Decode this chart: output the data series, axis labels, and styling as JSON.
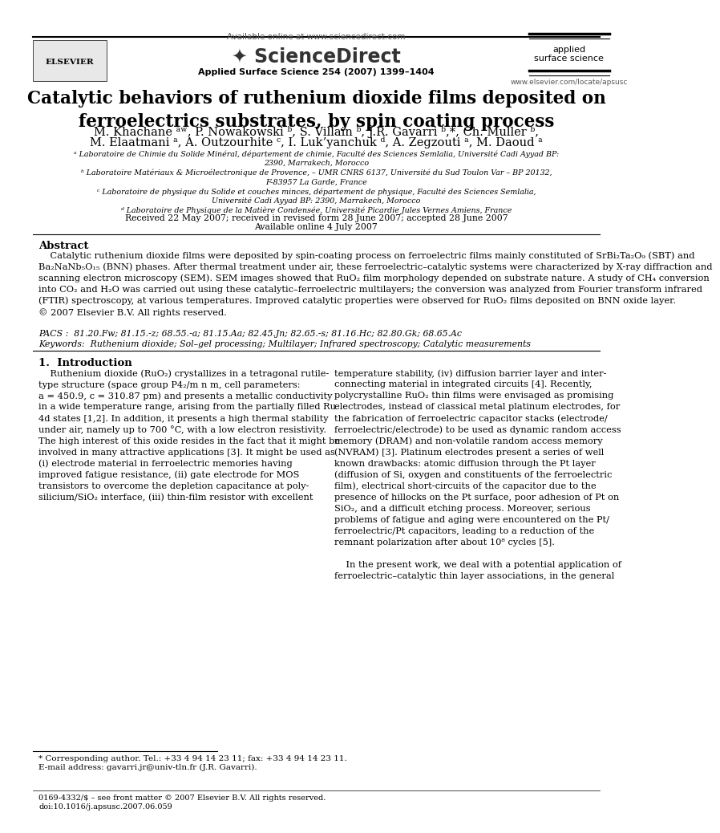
{
  "page_width": 9.92,
  "page_height": 13.23,
  "bg_color": "#ffffff",
  "header_available_online": "Available online at www.sciencedirect.com",
  "header_journal_ref": "Applied Surface Science 254 (2007) 1399–1404",
  "header_elsevier_label": "ELSEVIER",
  "header_journal_name_line1": "applied",
  "header_journal_name_line2": "surface science",
  "header_website": "www.elsevier.com/locate/apsusc",
  "title": "Catalytic behaviors of ruthenium dioxide films deposited on\nferroelectrics substrates, by spin coating process",
  "authors_line1": "M. Khachane ᵃʷ, P. Nowakowski ᵇ, S. Villain ᵇ, J.R. Gavarri ᵇ,*, Ch. Muller ᵇ,",
  "authors_line2": "M. Elaatmani ᵃ, A. Outzourhite ᶜ, I. Luk’yanchuk ᵈ, A. Zegzouti ᵃ, M. Daoud ᵃ",
  "affiliations": [
    "ᵃ Laboratoire de Chimie du Solide Minéral, département de chimie, Faculté des Sciences Semlalia, Université Cadi Ayyad BP:",
    "2390, Marrakech, Morocco",
    "ᵇ Laboratoire Matériaux & Microélectronique de Provence, – UMR CNRS 6137, Université du Sud Toulon Var – BP 20132,",
    "F-83957 La Garde, France",
    "ᶜ Laboratoire de physique du Solide et couches minces, département de physique, Faculté des Sciences Semlalia,",
    "Université Cadi Ayyad BP: 2390, Marrakech, Morocco",
    "ᵈ Laboratoire de Physique de la Matière Condensée, Université Picardie Jules Vernes Amiens, France"
  ],
  "received": "Received 22 May 2007; received in revised form 28 June 2007; accepted 28 June 2007",
  "available": "Available online 4 July 2007",
  "abstract_title": "Abstract",
  "abstract_lines": [
    "    Catalytic ruthenium dioxide films were deposited by spin-coating process on ferroelectric films mainly constituted of SrBi₂Ta₂O₉ (SBT) and",
    "Ba₂NaNb₅O₁₅ (BNN) phases. After thermal treatment under air, these ferroelectric–catalytic systems were characterized by X-ray diffraction and",
    "scanning electron microscopy (SEM). SEM images showed that RuO₂ film morphology depended on substrate nature. A study of CH₄ conversion",
    "into CO₂ and H₂O was carried out using these catalytic–ferroelectric multilayers; the conversion was analyzed from Fourier transform infrared",
    "(FTIR) spectroscopy, at various temperatures. Improved catalytic properties were observed for RuO₂ films deposited on BNN oxide layer.",
    "© 2007 Elsevier B.V. All rights reserved."
  ],
  "pacs": "PACS :  81.20.Fw; 81.15.-z; 68.55.-a; 81.15.Aa; 82.45.Jn; 82.65.-s; 81.16.Hc; 82.80.Gk; 68.65.Ac",
  "keywords": "Keywords:  Ruthenium dioxide; Sol–gel processing; Multilayer; Infrared spectroscopy; Catalytic measurements",
  "section_title": "1.  Introduction",
  "col1_lines": [
    "    Ruthenium dioxide (RuO₂) crystallizes in a tetragonal rutile-",
    "type structure (space group P4₂/m n m, cell parameters:",
    "a = 450.9, c = 310.87 pm) and presents a metallic conductivity",
    "in a wide temperature range, arising from the partially filled Ru",
    "4d states [1,2]. In addition, it presents a high thermal stability",
    "under air, namely up to 700 °C, with a low electron resistivity.",
    "The high interest of this oxide resides in the fact that it might be",
    "involved in many attractive applications [3]. It might be used as",
    "(i) electrode material in ferroelectric memories having",
    "improved fatigue resistance, (ii) gate electrode for MOS",
    "transistors to overcome the depletion capacitance at poly-",
    "silicium/SiO₂ interface, (iii) thin-film resistor with excellent"
  ],
  "col2_lines": [
    "temperature stability, (iv) diffusion barrier layer and inter-",
    "connecting material in integrated circuits [4]. Recently,",
    "polycrystalline RuO₂ thin films were envisaged as promising",
    "electrodes, instead of classical metal platinum electrodes, for",
    "the fabrication of ferroelectric capacitor stacks (electrode/",
    "ferroelectric/electrode) to be used as dynamic random access",
    "memory (DRAM) and non-volatile random access memory",
    "(NVRAM) [3]. Platinum electrodes present a series of well",
    "known drawbacks: atomic diffusion through the Pt layer",
    "(diffusion of Si, oxygen and constituents of the ferroelectric",
    "film), electrical short-circuits of the capacitor due to the",
    "presence of hillocks on the Pt surface, poor adhesion of Pt on",
    "SiO₂, and a difficult etching process. Moreover, serious",
    "problems of fatigue and aging were encountered on the Pt/",
    "ferroelectric/Pt capacitors, leading to a reduction of the",
    "remnant polarization after about 10⁸ cycles [5].",
    "",
    "    In the present work, we deal with a potential application of",
    "ferroelectric–catalytic thin layer associations, in the general"
  ],
  "footnote_star": "* Corresponding author. Tel.: +33 4 94 14 23 11; fax: +33 4 94 14 23 11.",
  "footnote_email": "E-mail address: gavarri.jr@univ-tln.fr (J.R. Gavarri).",
  "bottom_issn": "0169-4332/$ – see front matter © 2007 Elsevier B.V. All rights reserved.",
  "bottom_doi": "doi:10.1016/j.apsusc.2007.06.059"
}
